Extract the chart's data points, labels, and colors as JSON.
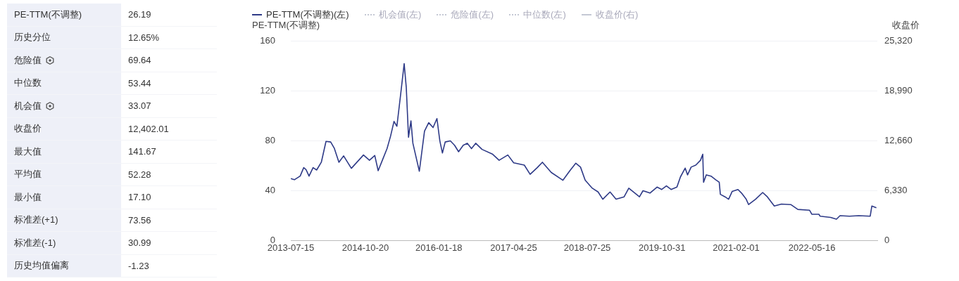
{
  "chart_data": [
    {
      "type": "other",
      "annotations": [
        "PE-TTM(不调整)",
        "26.19",
        "历史分位",
        "12.65%",
        "危险值",
        "69.64",
        "中位数",
        "53.44",
        "机会值",
        "33.07",
        "收盘价",
        "12,402.01",
        "最大值",
        "141.67",
        "平均值",
        "52.28",
        "最小值",
        "17.10",
        "标准差(+1)",
        "73.56",
        "标准差(-1)",
        "30.99",
        "历史均值偏离",
        "-1.23"
      ]
    },
    {
      "type": "line",
      "ylabel": "PE-TTM(不调整)",
      "y2label": "收盘价",
      "legend": "top left",
      "grid": "y",
      "xlim": [
        "2013-07-15",
        "2023-06-25"
      ],
      "xticks": [
        "2013-07-15",
        "2014-10-20",
        "2016-01-18",
        "2017-04-25",
        "2018-07-25",
        "2019-10-31",
        "2021-02-01",
        "2022-05-16"
      ],
      "ylim": [
        0,
        160
      ],
      "yticks": [
        0,
        40,
        80,
        120,
        160
      ],
      "y2lim": [
        0,
        25320
      ],
      "y2ticks": [
        0,
        {
          "value": 6330,
          "label": "6,330"
        },
        {
          "value": 12660,
          "label": "12,660"
        },
        {
          "value": 18990,
          "label": "18,990"
        },
        {
          "value": 25320,
          "label": "25,320"
        }
      ],
      "series": [
        {
          "name": "PE-TTM(不调整)(左)",
          "color": "#2e3a87",
          "line_style": "solid",
          "x": [
            "2013-07-15",
            "2013-08-06",
            "2013-09-11",
            "2013-10-03",
            "2013-10-17",
            "2013-11-05",
            "2013-11-30",
            "2013-12-22",
            "2014-01-20",
            "2014-02-18",
            "2014-03-19",
            "2014-04-10",
            "2014-05-09",
            "2014-06-07",
            "2014-07-25",
            "2014-10-08",
            "2014-11-14",
            "2014-12-17",
            "2015-01-07",
            "2015-02-02",
            "2015-03-03",
            "2015-03-25",
            "2015-04-15",
            "2015-05-03",
            "2015-05-26",
            "2015-06-17",
            "2015-06-30",
            "2015-07-14",
            "2015-07-29",
            "2015-08-10",
            "2015-09-05",
            "2015-09-19",
            "2015-10-21",
            "2015-11-16",
            "2015-12-13",
            "2016-01-06",
            "2016-01-24",
            "2016-02-09",
            "2016-02-26",
            "2016-03-29",
            "2016-04-24",
            "2016-05-19",
            "2016-06-17",
            "2016-07-12",
            "2016-08-07",
            "2016-09-02",
            "2016-10-11",
            "2016-12-16",
            "2017-01-25",
            "2017-03-20",
            "2017-04-25",
            "2017-06-30",
            "2017-08-05",
            "2017-09-18",
            "2017-10-20",
            "2017-12-14",
            "2018-02-24",
            "2018-04-09",
            "2018-05-15",
            "2018-06-13",
            "2018-07-12",
            "2018-08-25",
            "2018-09-30",
            "2018-10-29",
            "2018-12-13",
            "2019-01-19",
            "2019-03-10",
            "2019-04-08",
            "2019-06-13",
            "2019-07-05",
            "2019-08-17",
            "2019-09-30",
            "2019-10-29",
            "2019-11-27",
            "2019-12-26",
            "2020-01-31",
            "2020-02-22",
            "2020-03-22",
            "2020-04-06",
            "2020-04-28",
            "2020-05-27",
            "2020-06-25",
            "2020-07-09",
            "2020-07-14",
            "2020-07-31",
            "2020-08-29",
            "2020-09-27",
            "2020-10-19",
            "2020-10-26",
            "2020-11-24",
            "2020-12-16",
            "2021-01-07",
            "2021-02-12",
            "2021-03-06",
            "2021-04-04",
            "2021-04-19",
            "2021-06-01",
            "2021-07-15",
            "2021-08-13",
            "2021-09-25",
            "2021-11-08",
            "2022-01-05",
            "2022-02-18",
            "2022-05-01",
            "2022-05-16",
            "2022-06-28",
            "2022-07-06",
            "2022-09-09",
            "2022-10-15",
            "2022-11-06",
            "2023-01-03",
            "2023-03-02",
            "2023-05-12",
            "2023-05-22",
            "2023-06-19"
          ],
          "values": [
            49.6,
            48.7,
            51.6,
            58.4,
            56.9,
            51.6,
            58.4,
            56.5,
            62.7,
            79.4,
            78.9,
            74,
            62.7,
            67.8,
            57.8,
            68.5,
            64.3,
            68.1,
            55.9,
            64.3,
            73.6,
            83.7,
            95.4,
            91.5,
            116.8,
            141.67,
            122.7,
            82.7,
            95.8,
            77.9,
            63.3,
            55.5,
            87.6,
            94.4,
            90.5,
            97.7,
            79.8,
            70.1,
            78.9,
            79.8,
            76.3,
            71.1,
            76.3,
            77.9,
            73.6,
            77.9,
            73,
            69.1,
            64.3,
            68.5,
            62.3,
            60.4,
            53,
            58.4,
            62.7,
            54.5,
            48.3,
            56.1,
            61.9,
            58.8,
            48.3,
            41.9,
            38.9,
            33.1,
            38.9,
            33.1,
            35,
            41.9,
            35,
            39.9,
            38,
            42.8,
            40.9,
            43.8,
            40.9,
            42.8,
            51,
            58,
            52.6,
            58.8,
            60.4,
            64.3,
            69.1,
            46.7,
            52.6,
            51.6,
            48.7,
            46.7,
            37,
            35,
            33.1,
            39.3,
            40.9,
            38,
            33.1,
            28.8,
            33.1,
            38.5,
            35,
            27.6,
            29.2,
            28.8,
            24.9,
            24.3,
            21,
            21,
            19.5,
            18.5,
            17.1,
            19.9,
            19.5,
            19.9,
            19.5,
            27.6,
            26.19
          ]
        },
        {
          "name": "机会值(左)",
          "color": "#c4c8d4",
          "line_style": "dotted"
        },
        {
          "name": "危险值(左)",
          "color": "#c4c8d4",
          "line_style": "dotted"
        },
        {
          "name": "中位数(左)",
          "color": "#c4c8d4",
          "line_style": "dotted"
        },
        {
          "name": "收盘价(右)",
          "color": "#c4c8d4",
          "line_style": "solid"
        }
      ]
    }
  ]
}
